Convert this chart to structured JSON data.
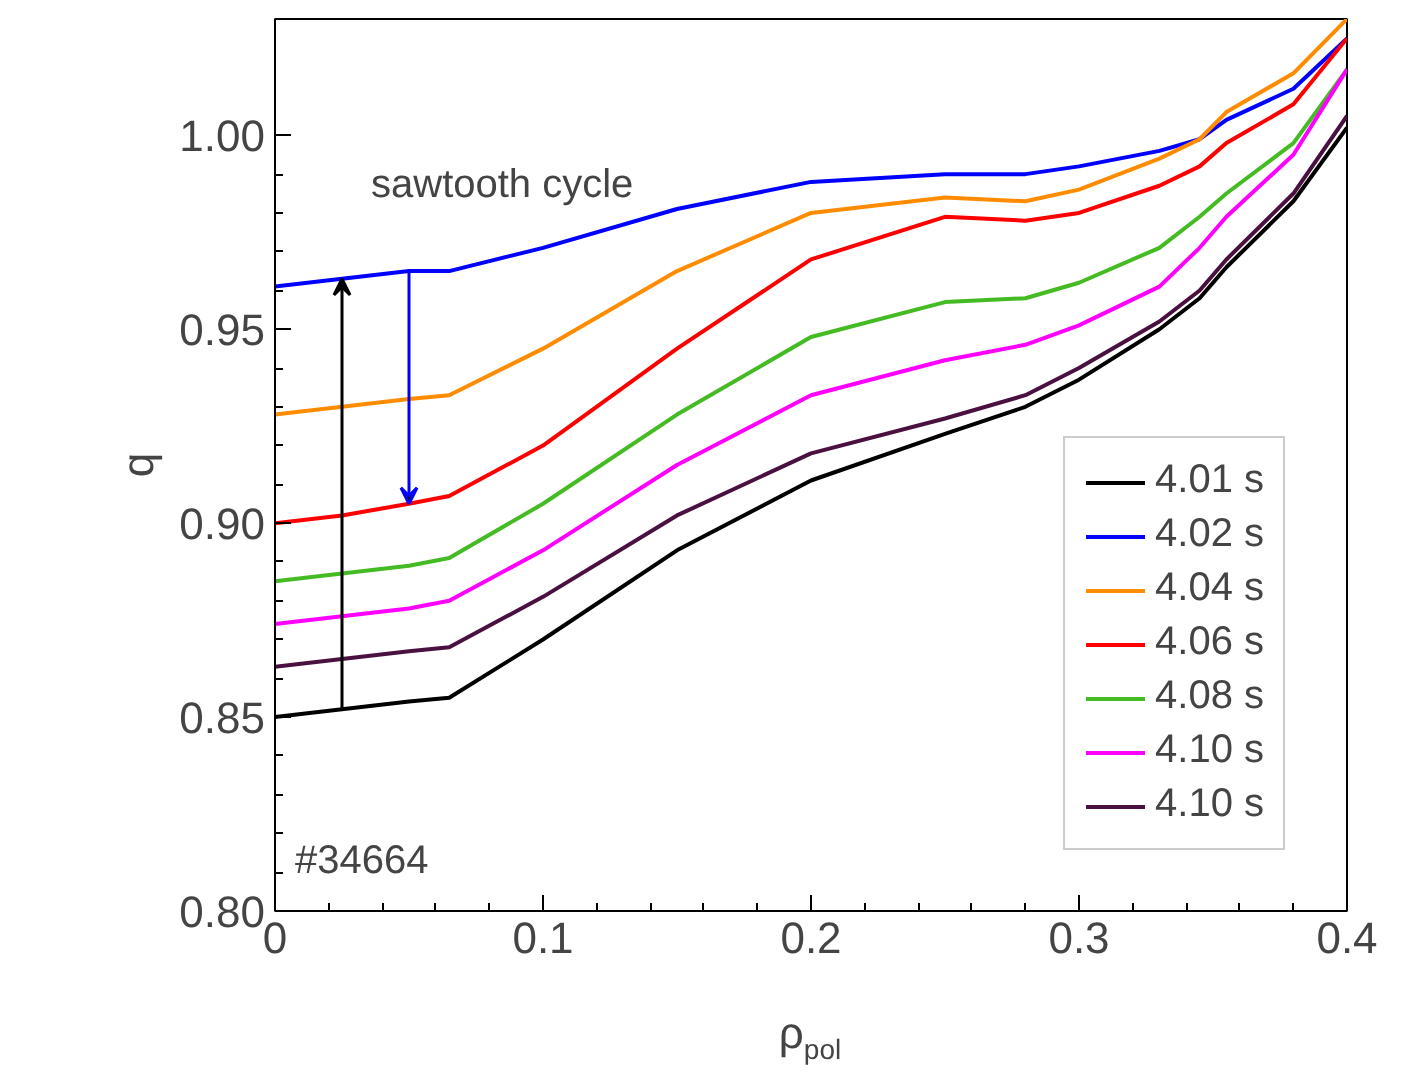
{
  "chart_data": {
    "type": "line",
    "xlabel": "ρ$_{pol}$",
    "ylabel": "q",
    "x": [
      0,
      0.025,
      0.05,
      0.065,
      0.1,
      0.15,
      0.2,
      0.25,
      0.28,
      0.3,
      0.33,
      0.345,
      0.355,
      0.38,
      0.4
    ],
    "series": [
      {
        "name": "4.01 s",
        "color": "#000000",
        "values": [
          0.85,
          0.852,
          0.854,
          0.855,
          0.87,
          0.893,
          0.911,
          0.923,
          0.93,
          0.937,
          0.95,
          0.958,
          0.966,
          0.983,
          1.002
        ]
      },
      {
        "name": "4.02 s",
        "color": "#0000ff",
        "values": [
          0.961,
          0.963,
          0.965,
          0.965,
          0.971,
          0.981,
          0.988,
          0.99,
          0.99,
          0.992,
          0.996,
          0.999,
          1.004,
          1.012,
          1.025
        ]
      },
      {
        "name": "4.04 s",
        "color": "#ff8c00",
        "values": [
          0.928,
          0.93,
          0.932,
          0.933,
          0.945,
          0.965,
          0.98,
          0.984,
          0.983,
          0.986,
          0.994,
          0.999,
          1.006,
          1.016,
          1.03
        ]
      },
      {
        "name": "4.06 s",
        "color": "#ff0000",
        "values": [
          0.9,
          0.902,
          0.905,
          0.907,
          0.92,
          0.945,
          0.968,
          0.979,
          0.978,
          0.98,
          0.987,
          0.992,
          0.998,
          1.008,
          1.025
        ]
      },
      {
        "name": "4.08 s",
        "color": "#44bb22",
        "values": [
          0.885,
          0.887,
          0.889,
          0.891,
          0.905,
          0.928,
          0.948,
          0.957,
          0.958,
          0.962,
          0.971,
          0.979,
          0.985,
          0.998,
          1.017
        ]
      },
      {
        "name": "4.10 s",
        "color": "#ff00ff",
        "values": [
          0.874,
          0.876,
          0.878,
          0.88,
          0.893,
          0.915,
          0.933,
          0.942,
          0.946,
          0.951,
          0.961,
          0.971,
          0.979,
          0.995,
          1.017
        ]
      },
      {
        "name": "4.10 s",
        "color": "#4a1040",
        "values": [
          0.863,
          0.865,
          0.867,
          0.868,
          0.881,
          0.902,
          0.918,
          0.927,
          0.933,
          0.94,
          0.952,
          0.96,
          0.968,
          0.985,
          1.005
        ]
      }
    ],
    "xlim": [
      0,
      0.4
    ],
    "ylim": [
      0.8,
      1.03
    ],
    "xticks": [
      0,
      0.1,
      0.2,
      0.3,
      0.4
    ],
    "yticks": [
      {
        "value": 0.8,
        "label": "0.80"
      },
      {
        "value": 0.85,
        "label": "0.85"
      },
      {
        "value": 0.9,
        "label": "0.90"
      },
      {
        "value": 0.95,
        "label": "0.95"
      },
      {
        "value": 1.0,
        "label": "1.00"
      }
    ],
    "annotations": [
      "sawtooth cycle",
      "#34664"
    ],
    "legend": "bottom right",
    "grid": false,
    "line_style": "solid",
    "marker": "none"
  }
}
